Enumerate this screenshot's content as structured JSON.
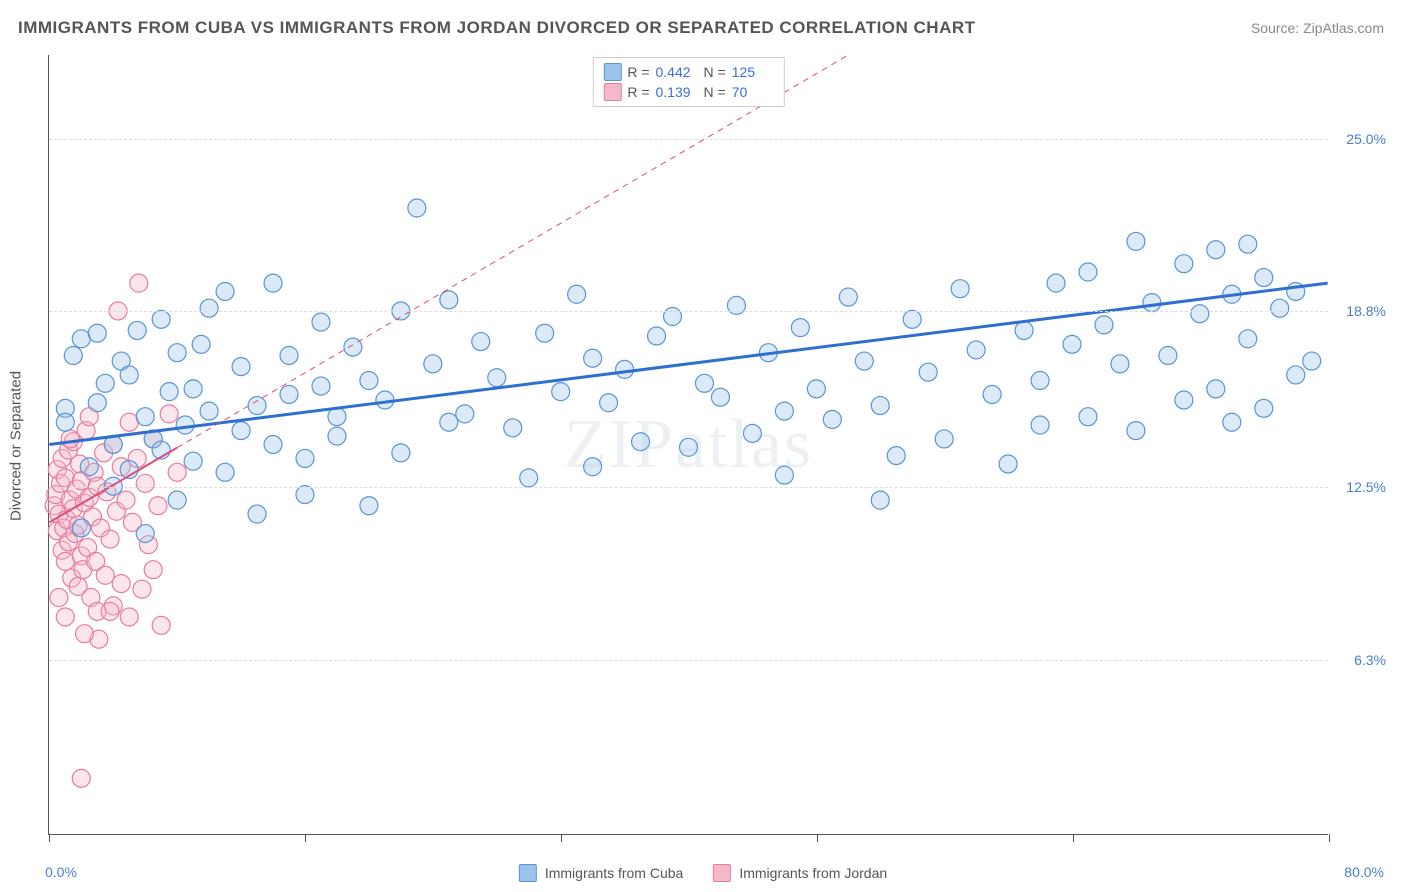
{
  "title": "IMMIGRANTS FROM CUBA VS IMMIGRANTS FROM JORDAN DIVORCED OR SEPARATED CORRELATION CHART",
  "source": "Source: ZipAtlas.com",
  "watermark": "ZIPatlas",
  "y_axis_label": "Divorced or Separated",
  "chart": {
    "type": "scatter",
    "xlim": [
      0,
      80
    ],
    "ylim": [
      0,
      28
    ],
    "x_min_label": "0.0%",
    "x_max_label": "80.0%",
    "y_ticks": [
      {
        "v": 6.3,
        "label": "6.3%"
      },
      {
        "v": 12.5,
        "label": "12.5%"
      },
      {
        "v": 18.8,
        "label": "18.8%"
      },
      {
        "v": 25.0,
        "label": "25.0%"
      }
    ],
    "x_tick_positions": [
      0,
      16,
      32,
      48,
      64,
      80
    ],
    "background_color": "#ffffff",
    "grid_color": "#dddddd",
    "axis_color": "#555555",
    "tick_label_color": "#4a7ec9",
    "marker_radius": 9,
    "marker_fill_opacity": 0.35,
    "marker_stroke_width": 1.2
  },
  "series": [
    {
      "name": "Immigrants from Cuba",
      "color_fill": "#9cc3eb",
      "color_stroke": "#5a93d6",
      "trend_color": "#2f6fd0",
      "trend_width": 3,
      "trend_dash": "none",
      "trend": {
        "x1": 0,
        "y1": 14.0,
        "x2": 80,
        "y2": 19.8
      },
      "stats": {
        "R": "0.442",
        "N": "125"
      },
      "points": [
        [
          1,
          15.3
        ],
        [
          1,
          14.8
        ],
        [
          1.5,
          17.2
        ],
        [
          2,
          17.8
        ],
        [
          2,
          11.0
        ],
        [
          2.5,
          13.2
        ],
        [
          3,
          15.5
        ],
        [
          3,
          18.0
        ],
        [
          3.5,
          16.2
        ],
        [
          4,
          14.0
        ],
        [
          4,
          12.5
        ],
        [
          4.5,
          17.0
        ],
        [
          5,
          16.5
        ],
        [
          5,
          13.1
        ],
        [
          5.5,
          18.1
        ],
        [
          6,
          10.8
        ],
        [
          6,
          15.0
        ],
        [
          6.5,
          14.2
        ],
        [
          7,
          18.5
        ],
        [
          7,
          13.8
        ],
        [
          7.5,
          15.9
        ],
        [
          8,
          17.3
        ],
        [
          8,
          12.0
        ],
        [
          8.5,
          14.7
        ],
        [
          9,
          16.0
        ],
        [
          9,
          13.4
        ],
        [
          9.5,
          17.6
        ],
        [
          10,
          15.2
        ],
        [
          10,
          18.9
        ],
        [
          11,
          19.5
        ],
        [
          11,
          13.0
        ],
        [
          12,
          14.5
        ],
        [
          12,
          16.8
        ],
        [
          13,
          11.5
        ],
        [
          13,
          15.4
        ],
        [
          14,
          19.8
        ],
        [
          14,
          14.0
        ],
        [
          15,
          15.8
        ],
        [
          15,
          17.2
        ],
        [
          16,
          13.5
        ],
        [
          16,
          12.2
        ],
        [
          17,
          16.1
        ],
        [
          17,
          18.4
        ],
        [
          18,
          15.0
        ],
        [
          18,
          14.3
        ],
        [
          19,
          17.5
        ],
        [
          20,
          11.8
        ],
        [
          20,
          16.3
        ],
        [
          21,
          15.6
        ],
        [
          22,
          18.8
        ],
        [
          22,
          13.7
        ],
        [
          23,
          22.5
        ],
        [
          24,
          16.9
        ],
        [
          25,
          14.8
        ],
        [
          25,
          19.2
        ],
        [
          26,
          15.1
        ],
        [
          27,
          17.7
        ],
        [
          28,
          16.4
        ],
        [
          29,
          14.6
        ],
        [
          30,
          12.8
        ],
        [
          31,
          18.0
        ],
        [
          32,
          15.9
        ],
        [
          33,
          19.4
        ],
        [
          34,
          13.2
        ],
        [
          34,
          17.1
        ],
        [
          35,
          15.5
        ],
        [
          36,
          16.7
        ],
        [
          37,
          14.1
        ],
        [
          38,
          17.9
        ],
        [
          39,
          18.6
        ],
        [
          40,
          13.9
        ],
        [
          41,
          16.2
        ],
        [
          42,
          15.7
        ],
        [
          43,
          19.0
        ],
        [
          44,
          14.4
        ],
        [
          45,
          17.3
        ],
        [
          46,
          15.2
        ],
        [
          46,
          12.9
        ],
        [
          47,
          18.2
        ],
        [
          48,
          16.0
        ],
        [
          49,
          14.9
        ],
        [
          50,
          19.3
        ],
        [
          51,
          17.0
        ],
        [
          52,
          15.4
        ],
        [
          53,
          13.6
        ],
        [
          54,
          18.5
        ],
        [
          55,
          16.6
        ],
        [
          56,
          14.2
        ],
        [
          57,
          19.6
        ],
        [
          58,
          17.4
        ],
        [
          59,
          15.8
        ],
        [
          60,
          13.3
        ],
        [
          61,
          18.1
        ],
        [
          62,
          16.3
        ],
        [
          62,
          14.7
        ],
        [
          63,
          19.8
        ],
        [
          64,
          17.6
        ],
        [
          65,
          20.2
        ],
        [
          65,
          15.0
        ],
        [
          66,
          18.3
        ],
        [
          67,
          16.9
        ],
        [
          68,
          14.5
        ],
        [
          68,
          21.3
        ],
        [
          69,
          19.1
        ],
        [
          70,
          17.2
        ],
        [
          71,
          15.6
        ],
        [
          71,
          20.5
        ],
        [
          72,
          18.7
        ],
        [
          73,
          16.0
        ],
        [
          73,
          21.0
        ],
        [
          74,
          19.4
        ],
        [
          74,
          14.8
        ],
        [
          75,
          17.8
        ],
        [
          75,
          21.2
        ],
        [
          76,
          15.3
        ],
        [
          76,
          20.0
        ],
        [
          77,
          18.9
        ],
        [
          78,
          16.5
        ],
        [
          78,
          19.5
        ],
        [
          79,
          17.0
        ],
        [
          52,
          12.0
        ]
      ]
    },
    {
      "name": "Immigrants from Jordan",
      "color_fill": "#f5b8c9",
      "color_stroke": "#e87ba0",
      "trend_color": "#d94f7a",
      "trend_width": 2,
      "trend_dash": "6,5",
      "trend": {
        "x1": 0,
        "y1": 11.2,
        "x2": 50,
        "y2": 28.0
      },
      "trend_solid_end": 8,
      "stats": {
        "R": "0.139",
        "N": "70"
      },
      "points": [
        [
          0.3,
          11.8
        ],
        [
          0.4,
          12.2
        ],
        [
          0.5,
          10.9
        ],
        [
          0.5,
          13.1
        ],
        [
          0.6,
          11.5
        ],
        [
          0.7,
          12.6
        ],
        [
          0.8,
          10.2
        ],
        [
          0.8,
          13.5
        ],
        [
          0.9,
          11.0
        ],
        [
          1.0,
          12.8
        ],
        [
          1.0,
          9.8
        ],
        [
          1.1,
          11.3
        ],
        [
          1.2,
          13.8
        ],
        [
          1.2,
          10.5
        ],
        [
          1.3,
          12.0
        ],
        [
          1.4,
          9.2
        ],
        [
          1.5,
          11.7
        ],
        [
          1.5,
          14.1
        ],
        [
          1.6,
          10.8
        ],
        [
          1.7,
          12.4
        ],
        [
          1.8,
          8.9
        ],
        [
          1.8,
          11.1
        ],
        [
          1.9,
          13.3
        ],
        [
          2.0,
          10.0
        ],
        [
          2.0,
          12.7
        ],
        [
          2.1,
          9.5
        ],
        [
          2.2,
          11.9
        ],
        [
          2.3,
          14.5
        ],
        [
          2.4,
          10.3
        ],
        [
          2.5,
          12.1
        ],
        [
          2.6,
          8.5
        ],
        [
          2.7,
          11.4
        ],
        [
          2.8,
          13.0
        ],
        [
          2.9,
          9.8
        ],
        [
          3.0,
          12.5
        ],
        [
          3.0,
          8.0
        ],
        [
          3.2,
          11.0
        ],
        [
          3.4,
          13.7
        ],
        [
          3.5,
          9.3
        ],
        [
          3.6,
          12.3
        ],
        [
          3.8,
          10.6
        ],
        [
          4.0,
          14.0
        ],
        [
          4.0,
          8.2
        ],
        [
          4.2,
          11.6
        ],
        [
          4.5,
          13.2
        ],
        [
          4.5,
          9.0
        ],
        [
          4.8,
          12.0
        ],
        [
          5.0,
          14.8
        ],
        [
          5.0,
          7.8
        ],
        [
          5.2,
          11.2
        ],
        [
          5.5,
          13.5
        ],
        [
          5.8,
          8.8
        ],
        [
          6.0,
          12.6
        ],
        [
          6.2,
          10.4
        ],
        [
          6.5,
          14.2
        ],
        [
          6.8,
          11.8
        ],
        [
          7.0,
          7.5
        ],
        [
          4.3,
          18.8
        ],
        [
          5.6,
          19.8
        ],
        [
          3.1,
          7.0
        ],
        [
          7.5,
          15.1
        ],
        [
          8.0,
          13.0
        ],
        [
          2.2,
          7.2
        ],
        [
          1.0,
          7.8
        ],
        [
          0.6,
          8.5
        ],
        [
          3.8,
          8.0
        ],
        [
          2.5,
          15.0
        ],
        [
          1.3,
          14.2
        ],
        [
          6.5,
          9.5
        ],
        [
          2.0,
          2.0
        ]
      ]
    }
  ],
  "legend": {
    "series1_label": "Immigrants from Cuba",
    "series2_label": "Immigrants from Jordan",
    "R_label": "R =",
    "N_label": "N ="
  }
}
